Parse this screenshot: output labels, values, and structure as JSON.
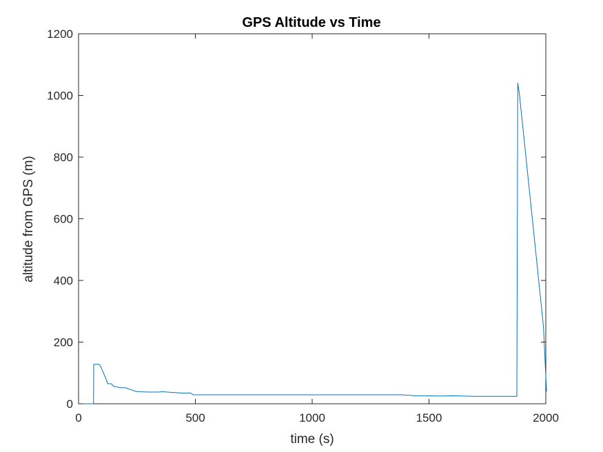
{
  "chart_data": {
    "type": "line",
    "title": "GPS Altitude vs Time",
    "xlabel": "time (s)",
    "ylabel": "altitude from GPS (m)",
    "xlim": [
      0,
      2000
    ],
    "ylim": [
      0,
      1200
    ],
    "xticks": [
      0,
      500,
      1000,
      1500,
      2000
    ],
    "yticks": [
      0,
      200,
      400,
      600,
      800,
      1000,
      1200
    ],
    "xtick_labels": [
      "0",
      "500",
      "1000",
      "1500",
      "2000"
    ],
    "ytick_labels": [
      "0",
      "200",
      "400",
      "600",
      "800",
      "1000",
      "1200"
    ],
    "grid": false,
    "colors": {
      "line": "#0072BD",
      "axes": "#262626"
    },
    "series": [
      {
        "x": [
          0,
          64,
          65,
          88,
          95,
          105,
          115,
          125,
          140,
          150,
          160,
          180,
          200,
          220,
          240,
          260,
          300,
          340,
          360,
          400,
          440,
          480,
          490,
          520,
          600,
          800,
          1000,
          1200,
          1380,
          1410,
          1440,
          1500,
          1550,
          1600,
          1700,
          1800,
          1875,
          1876,
          1880,
          1887,
          1893,
          1900,
          1930,
          1960,
          1990,
          2003
        ],
        "values": [
          0,
          0,
          128,
          128,
          120,
          103,
          85,
          65,
          65,
          57,
          55,
          52,
          52,
          47,
          41,
          39,
          38,
          38,
          39,
          37,
          35,
          35,
          29,
          29,
          29,
          29,
          29,
          29,
          29,
          28,
          26,
          26,
          25,
          26,
          24,
          24,
          24,
          24,
          1040,
          1005,
          960,
          910,
          690,
          470,
          250,
          40
        ]
      }
    ]
  }
}
